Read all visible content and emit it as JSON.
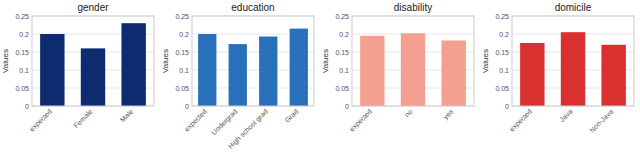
{
  "chart_data": [
    {
      "type": "bar",
      "title": "gender",
      "ylabel": "Values",
      "categories": [
        "expected",
        "Female",
        "Male"
      ],
      "values": [
        0.2,
        0.16,
        0.23
      ],
      "color": "#0d2b6e",
      "ylim": [
        0,
        0.25
      ],
      "yticks": [
        0,
        0.05,
        0.1,
        0.15,
        0.2,
        0.25
      ],
      "grid": true
    },
    {
      "type": "bar",
      "title": "education",
      "ylabel": "Values",
      "categories": [
        "expected",
        "Undergrad",
        "High school grad",
        "Grad"
      ],
      "values": [
        0.2,
        0.172,
        0.193,
        0.215
      ],
      "color": "#2a6fba",
      "ylim": [
        0,
        0.25
      ],
      "yticks": [
        0,
        0.05,
        0.1,
        0.15,
        0.2,
        0.25
      ],
      "grid": true
    },
    {
      "type": "bar",
      "title": "disability",
      "ylabel": "Values",
      "categories": [
        "expected",
        "no",
        "yes"
      ],
      "values": [
        0.195,
        0.202,
        0.182
      ],
      "color": "#f4a090",
      "ylim": [
        0,
        0.25
      ],
      "yticks": [
        0,
        0.05,
        0.1,
        0.15,
        0.2,
        0.25
      ],
      "grid": true
    },
    {
      "type": "bar",
      "title": "domicile",
      "ylabel": "Values",
      "categories": [
        "expected",
        "Java",
        "Non-Java"
      ],
      "values": [
        0.175,
        0.205,
        0.17
      ],
      "color": "#d93030",
      "ylim": [
        0,
        0.25
      ],
      "yticks": [
        0,
        0.05,
        0.1,
        0.15,
        0.2,
        0.25
      ],
      "grid": true
    }
  ]
}
